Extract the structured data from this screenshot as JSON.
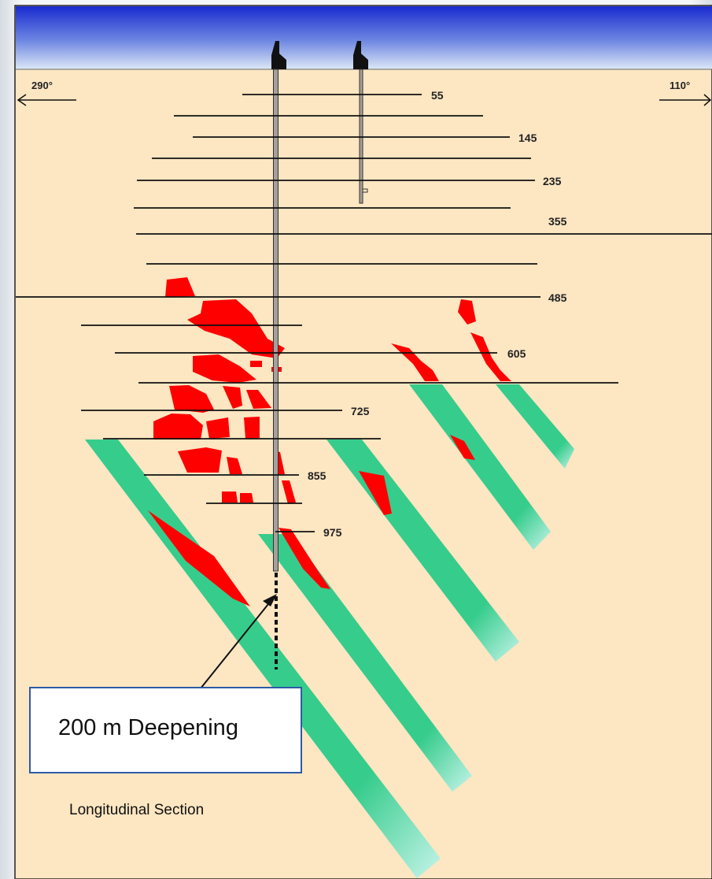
{
  "title": "",
  "caption": "Longitudinal Section",
  "callout": {
    "label": "200 m Deepening"
  },
  "directions": {
    "left": "290°",
    "right": "110°"
  },
  "levels": [
    {
      "label": "55"
    },
    {
      "label": "145"
    },
    {
      "label": "235"
    },
    {
      "label": "355"
    },
    {
      "label": "485"
    },
    {
      "label": "605"
    },
    {
      "label": "725"
    },
    {
      "label": "855"
    },
    {
      "label": "975"
    }
  ],
  "colors": {
    "sky_top": "#1a2bd0",
    "sky_bottom": "#dde8f6",
    "ground": "#fde6c2",
    "ore": "#ff0000",
    "vein": "#36cc8c",
    "vein_fade": "#c6f4ea",
    "callout_border": "#2c5ba6"
  },
  "icons": {
    "headframe": "headframe-icon",
    "arrow_left": "arrow-left-icon",
    "arrow_right": "arrow-right-icon"
  }
}
